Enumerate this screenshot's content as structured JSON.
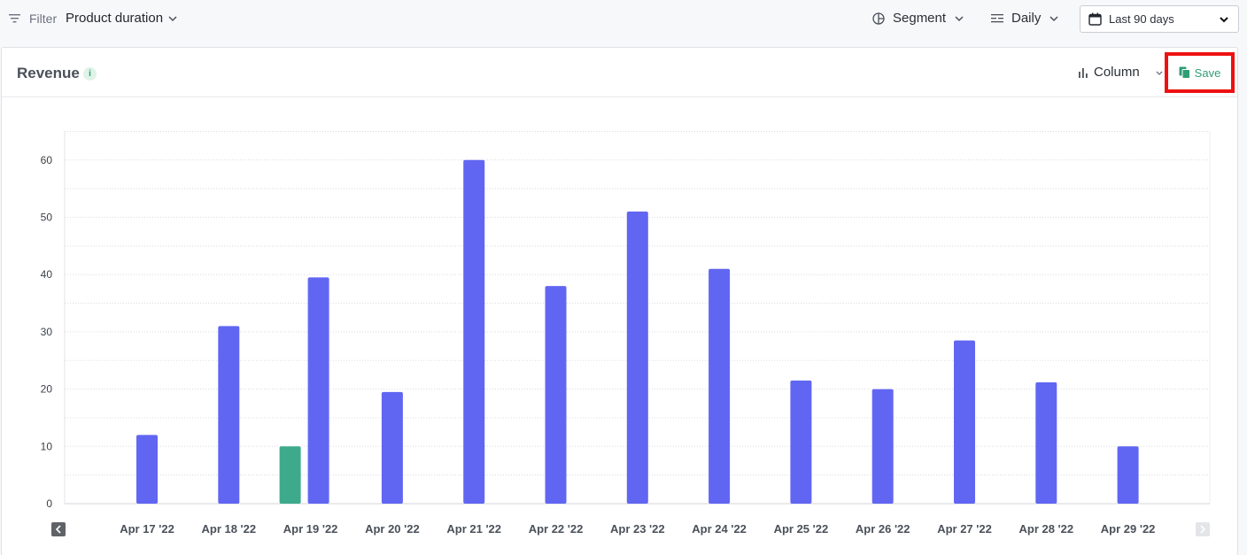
{
  "toolbar": {
    "filter_label": "Filter",
    "filter_value": "Product duration",
    "segment_label": "Segment",
    "interval_label": "Daily",
    "date_range_label": "Last 90 days"
  },
  "card": {
    "title": "Revenue",
    "info_symbol": "i",
    "chart_type_label": "Column",
    "save_label": "Save"
  },
  "colors": {
    "primary_series": "#6166f2",
    "highlight_bar": "#3daa8c",
    "accent_green": "#2f9e74",
    "save_outline": "#ee1111"
  },
  "chart_data": {
    "type": "bar",
    "title": "Revenue",
    "xlabel": "",
    "ylabel": "",
    "ylim": [
      0,
      65
    ],
    "y_ticks": [
      0,
      10,
      20,
      30,
      40,
      50,
      60
    ],
    "grid": true,
    "categories": [
      "Apr 17 '22",
      "Apr 18 '22",
      "Apr 19 '22",
      "Apr 20 '22",
      "Apr 21 '22",
      "Apr 22 '22",
      "Apr 23 '22",
      "Apr 24 '22",
      "Apr 25 '22",
      "Apr 26 '22",
      "Apr 27 '22",
      "Apr 28 '22",
      "Apr 29 '22"
    ],
    "series": [
      {
        "color": "#3daa8c",
        "values": [
          null,
          null,
          10,
          null,
          null,
          null,
          null,
          null,
          null,
          null,
          null,
          null,
          null
        ]
      },
      {
        "color": "#6166f2",
        "values": [
          12,
          31,
          39.5,
          19.5,
          60,
          38,
          51,
          41,
          21.5,
          20,
          28.5,
          21.2,
          10
        ]
      }
    ]
  }
}
